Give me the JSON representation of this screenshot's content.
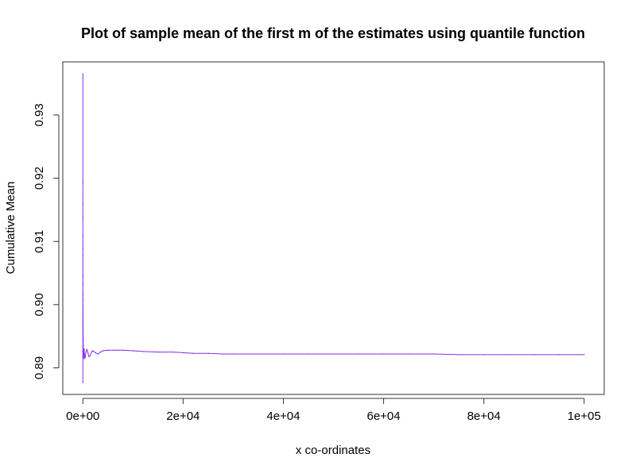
{
  "chart_data": {
    "type": "scatter",
    "title": "Plot of sample mean of the first m of the estimates using quantile function",
    "xlabel": "x co-ordinates",
    "ylabel": "Cumulative Mean",
    "xlim": [
      -4000,
      104000
    ],
    "ylim": [
      0.8858,
      0.9384
    ],
    "grid": false,
    "legend": "none",
    "color": "#8a2be2",
    "x_ticks": [
      {
        "value": 0,
        "label": "0e+00"
      },
      {
        "value": 20000,
        "label": "2e+04"
      },
      {
        "value": 40000,
        "label": "4e+04"
      },
      {
        "value": 60000,
        "label": "6e+04"
      },
      {
        "value": 80000,
        "label": "8e+04"
      },
      {
        "value": 100000,
        "label": "1e+05"
      }
    ],
    "y_ticks": [
      {
        "value": 0.89,
        "label": "0.89"
      },
      {
        "value": 0.9,
        "label": "0.90"
      },
      {
        "value": 0.91,
        "label": "0.91"
      },
      {
        "value": 0.92,
        "label": "0.92"
      },
      {
        "value": 0.93,
        "label": "0.93"
      }
    ],
    "series": [
      {
        "x": [
          1,
          2,
          3,
          4,
          5,
          6,
          8,
          10,
          12,
          15,
          18,
          22,
          27,
          33,
          40,
          50,
          60,
          75,
          90,
          110,
          140,
          170,
          200,
          250,
          300,
          400,
          500,
          600,
          800,
          1000,
          1200,
          1500,
          1800,
          2000,
          2500,
          3000,
          3500,
          4000,
          5000,
          6000,
          7000,
          8000,
          10000,
          12000,
          15000,
          18000,
          20000,
          22000,
          25000,
          28000,
          30000,
          35000,
          40000,
          45000,
          50000,
          55000,
          60000,
          65000,
          70000,
          75000,
          80000,
          85000,
          90000,
          95000,
          100000
        ],
        "y": [
          0.9365,
          0.8877,
          0.9193,
          0.916,
          0.9137,
          0.9109,
          0.9088,
          0.9079,
          0.9046,
          0.9032,
          0.9015,
          0.9008,
          0.9,
          0.8978,
          0.8968,
          0.8955,
          0.8945,
          0.8935,
          0.8928,
          0.8921,
          0.8915,
          0.8918,
          0.8925,
          0.893,
          0.8922,
          0.8915,
          0.8918,
          0.8925,
          0.8929,
          0.8924,
          0.8918,
          0.892,
          0.8926,
          0.8927,
          0.8924,
          0.8922,
          0.8925,
          0.8927,
          0.8928,
          0.8928,
          0.8928,
          0.8928,
          0.8927,
          0.8926,
          0.8925,
          0.8925,
          0.8924,
          0.8923,
          0.8923,
          0.8922,
          0.8922,
          0.8922,
          0.8922,
          0.8922,
          0.8922,
          0.8922,
          0.8922,
          0.8922,
          0.8922,
          0.8921,
          0.8921,
          0.8921,
          0.8921,
          0.8921,
          0.8921
        ]
      }
    ]
  }
}
